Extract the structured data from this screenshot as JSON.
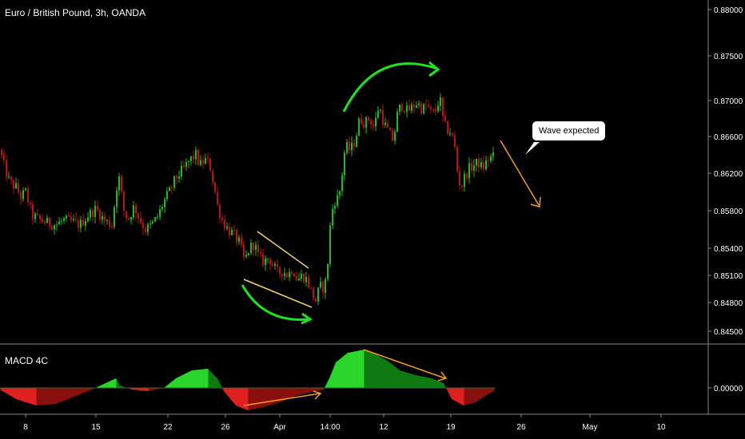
{
  "chart_data": [
    {
      "type": "candlestick",
      "title": "Euro / British Pound, 3h, OANDA",
      "y_ticks": [
        0.845,
        0.848,
        0.851,
        0.854,
        0.858,
        0.862,
        0.866,
        0.87,
        0.875,
        0.88
      ],
      "y_tick_labels": [
        "0.84500",
        "0.84800",
        "0.85100",
        "0.85400",
        "0.85800",
        "0.86200",
        "0.86600",
        "0.87000",
        "0.87500",
        "0.88000"
      ],
      "x_tick_labels": [
        "8",
        "15",
        "22",
        "26",
        "Apr",
        "14:00",
        "12",
        "19",
        "26",
        "May",
        "10"
      ],
      "price_path": [
        [
          0,
          0.8645
        ],
        [
          6,
          0.8625
        ],
        [
          12,
          0.861
        ],
        [
          20,
          0.8605
        ],
        [
          26,
          0.8595
        ],
        [
          32,
          0.86
        ],
        [
          40,
          0.8575
        ],
        [
          50,
          0.857
        ],
        [
          60,
          0.8567
        ],
        [
          70,
          0.8565
        ],
        [
          80,
          0.857
        ],
        [
          90,
          0.8568
        ],
        [
          100,
          0.8565
        ],
        [
          110,
          0.8575
        ],
        [
          120,
          0.8582
        ],
        [
          130,
          0.857
        ],
        [
          140,
          0.8565
        ],
        [
          148,
          0.862
        ],
        [
          155,
          0.858
        ],
        [
          160,
          0.857
        ],
        [
          168,
          0.8585
        ],
        [
          175,
          0.857
        ],
        [
          182,
          0.856
        ],
        [
          190,
          0.8565
        ],
        [
          198,
          0.8575
        ],
        [
          205,
          0.859
        ],
        [
          212,
          0.86
        ],
        [
          220,
          0.8615
        ],
        [
          230,
          0.8625
        ],
        [
          238,
          0.8635
        ],
        [
          245,
          0.864
        ],
        [
          250,
          0.8628
        ],
        [
          256,
          0.8635
        ],
        [
          262,
          0.863
        ],
        [
          268,
          0.8605
        ],
        [
          272,
          0.8585
        ],
        [
          278,
          0.857
        ],
        [
          285,
          0.856
        ],
        [
          292,
          0.8555
        ],
        [
          300,
          0.8545
        ],
        [
          306,
          0.8525
        ],
        [
          312,
          0.854
        ],
        [
          318,
          0.8545
        ],
        [
          324,
          0.853
        ],
        [
          330,
          0.8525
        ],
        [
          336,
          0.853
        ],
        [
          342,
          0.852
        ],
        [
          348,
          0.8512
        ],
        [
          354,
          0.8515
        ],
        [
          360,
          0.851
        ],
        [
          366,
          0.8518
        ],
        [
          372,
          0.8505
        ],
        [
          378,
          0.851
        ],
        [
          384,
          0.8505
        ],
        [
          390,
          0.849
        ],
        [
          395,
          0.8482
        ],
        [
          400,
          0.8498
        ],
        [
          406,
          0.8495
        ],
        [
          410,
          0.8525
        ],
        [
          414,
          0.8575
        ],
        [
          418,
          0.859
        ],
        [
          424,
          0.8595
        ],
        [
          428,
          0.862
        ],
        [
          432,
          0.865
        ],
        [
          438,
          0.8645
        ],
        [
          444,
          0.8655
        ],
        [
          450,
          0.868
        ],
        [
          456,
          0.8675
        ],
        [
          462,
          0.868
        ],
        [
          468,
          0.867
        ],
        [
          474,
          0.8695
        ],
        [
          480,
          0.8675
        ],
        [
          486,
          0.8665
        ],
        [
          492,
          0.8655
        ],
        [
          498,
          0.869
        ],
        [
          504,
          0.8695
        ],
        [
          510,
          0.8688
        ],
        [
          516,
          0.8693
        ],
        [
          522,
          0.8698
        ],
        [
          528,
          0.869
        ],
        [
          534,
          0.8695
        ],
        [
          540,
          0.8685
        ],
        [
          546,
          0.869
        ],
        [
          550,
          0.8705
        ],
        [
          554,
          0.868
        ],
        [
          558,
          0.8668
        ],
        [
          563,
          0.8665
        ],
        [
          568,
          0.8655
        ],
        [
          573,
          0.8615
        ],
        [
          577,
          0.8605
        ],
        [
          582,
          0.8618
        ],
        [
          587,
          0.8625
        ],
        [
          592,
          0.8628
        ],
        [
          598,
          0.8632
        ],
        [
          604,
          0.8625
        ],
        [
          610,
          0.8635
        ],
        [
          616,
          0.8638
        ]
      ],
      "annotations": {
        "callout_text": "Wave expected",
        "trend_arrows": [
          {
            "from": [
              0.8528,
              305
            ],
            "to": [
              0.8485,
              388
            ]
          },
          {
            "from": [
              0.8525,
              305
            ],
            "to": [
              0.855,
              323
            ]
          }
        ]
      }
    },
    {
      "type": "histogram",
      "title": "MACD 4C",
      "y_ticks": [
        0.0
      ],
      "y_tick_labels": [
        "0.00000"
      ],
      "series": []
    }
  ],
  "colors": {
    "up": "#23b723",
    "down": "#b61414",
    "background": "#000000",
    "grid": "#888888",
    "orange": "#f79a1e",
    "yellow": "#f5d56a",
    "green_arc": "#1ee31e",
    "text": "#ffffff",
    "callout_bg": "#ffffff",
    "callout_text": "#000000"
  },
  "labels": {
    "title": "Euro / British Pound, 3h, OANDA",
    "subchart_title": "MACD 4C",
    "callout": "Wave expected"
  }
}
